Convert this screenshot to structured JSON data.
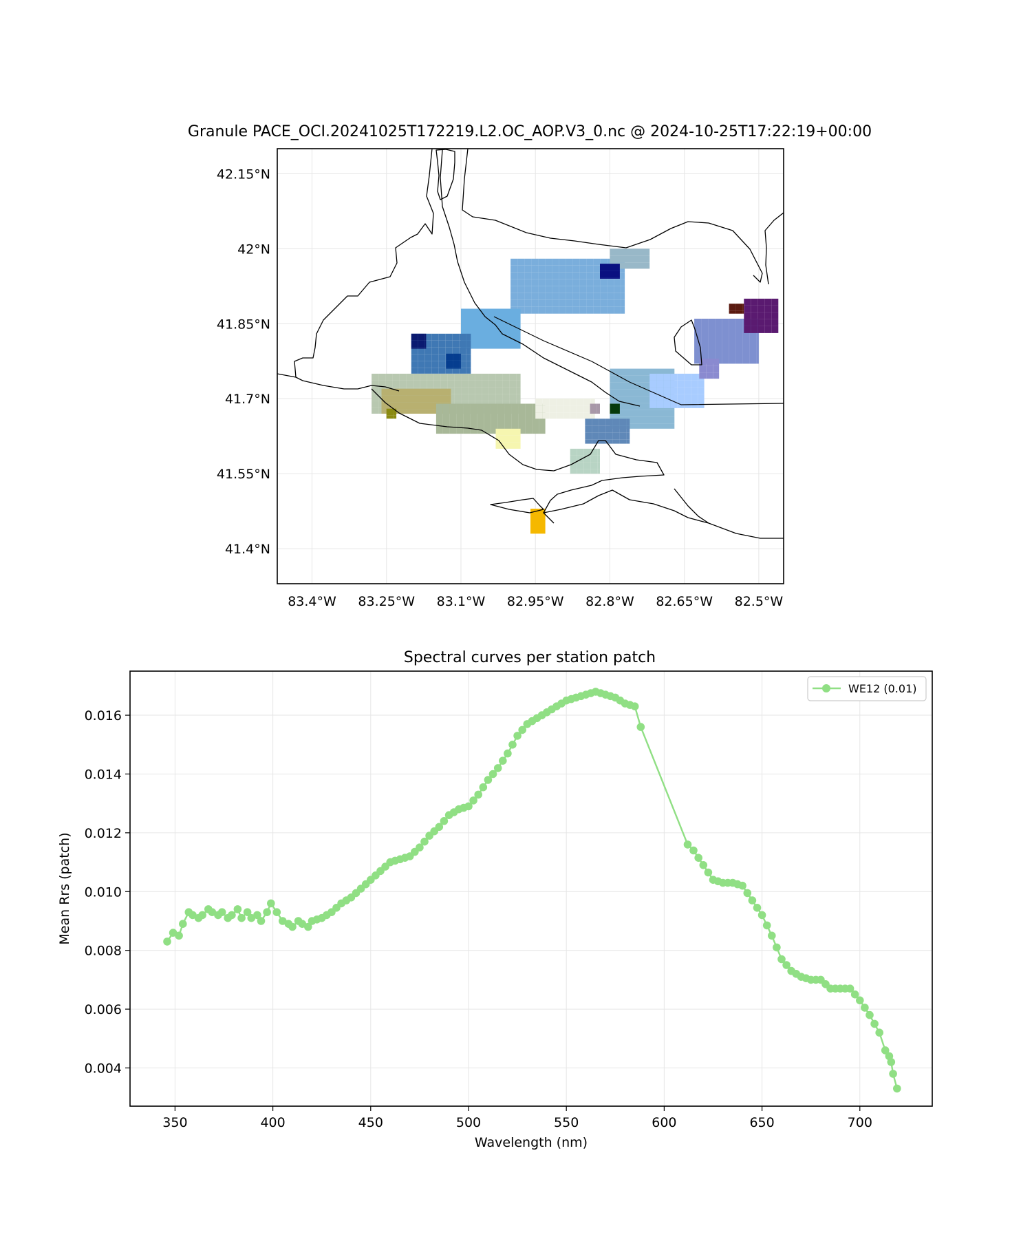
{
  "chart_data": [
    {
      "type": "heatmap",
      "title": "Granule PACE_OCI.20241025T172219.L2.OC_AOP.V3_0.nc @ 2024-10-25T17:22:19+00:00",
      "xlim": [
        -83.47,
        -82.45
      ],
      "ylim": [
        41.33,
        42.2
      ],
      "x_ticks": [
        {
          "value": -83.4,
          "label": "83.4°W"
        },
        {
          "value": -83.25,
          "label": "83.25°W"
        },
        {
          "value": -83.1,
          "label": "83.1°W"
        },
        {
          "value": -82.95,
          "label": "82.95°W"
        },
        {
          "value": -82.8,
          "label": "82.8°W"
        },
        {
          "value": -82.65,
          "label": "82.65°W"
        },
        {
          "value": -82.5,
          "label": "82.5°W"
        }
      ],
      "y_ticks": [
        {
          "value": 42.15,
          "label": "42.15°N"
        },
        {
          "value": 42.0,
          "label": "42°N"
        },
        {
          "value": 41.85,
          "label": "41.85°N"
        },
        {
          "value": 41.7,
          "label": "41.7°N"
        },
        {
          "value": 41.55,
          "label": "41.55°N"
        },
        {
          "value": 41.4,
          "label": "41.4°N"
        }
      ],
      "grid": true,
      "color_patches": [
        {
          "lon": [
            -83.0,
            -82.77
          ],
          "lat": [
            41.87,
            41.98
          ],
          "color": "#7aaedc"
        },
        {
          "lon": [
            -82.8,
            -82.72
          ],
          "lat": [
            41.96,
            42.0
          ],
          "color": "#98b8c8"
        },
        {
          "lon": [
            -82.82,
            -82.78
          ],
          "lat": [
            41.94,
            41.97
          ],
          "color": "#0a1080"
        },
        {
          "lon": [
            -83.1,
            -82.98
          ],
          "lat": [
            41.8,
            41.88
          ],
          "color": "#6aaee0"
        },
        {
          "lon": [
            -83.2,
            -83.08
          ],
          "lat": [
            41.75,
            41.83
          ],
          "color": "#3f78b4"
        },
        {
          "lon": [
            -83.2,
            -83.17
          ],
          "lat": [
            41.8,
            41.83
          ],
          "color": "#0a1a70"
        },
        {
          "lon": [
            -83.13,
            -83.1
          ],
          "lat": [
            41.76,
            41.79
          ],
          "color": "#053d8f"
        },
        {
          "lon": [
            -83.28,
            -82.98
          ],
          "lat": [
            41.67,
            41.75
          ],
          "color": "#b8c8b0"
        },
        {
          "lon": [
            -83.26,
            -83.12
          ],
          "lat": [
            41.67,
            41.72
          ],
          "color": "#b8b070"
        },
        {
          "lon": [
            -83.25,
            -83.23
          ],
          "lat": [
            41.66,
            41.68
          ],
          "color": "#8a8a10"
        },
        {
          "lon": [
            -83.15,
            -82.93
          ],
          "lat": [
            41.63,
            41.69
          ],
          "color": "#a8b898"
        },
        {
          "lon": [
            -83.03,
            -82.98
          ],
          "lat": [
            41.6,
            41.64
          ],
          "color": "#f6f6b0"
        },
        {
          "lon": [
            -82.95,
            -82.83
          ],
          "lat": [
            41.66,
            41.7
          ],
          "color": "#eef0e4"
        },
        {
          "lon": [
            -82.84,
            -82.82
          ],
          "lat": [
            41.67,
            41.69
          ],
          "color": "#a898a8"
        },
        {
          "lon": [
            -82.8,
            -82.67
          ],
          "lat": [
            41.64,
            41.76
          ],
          "color": "#8ab8d4"
        },
        {
          "lon": [
            -82.85,
            -82.76
          ],
          "lat": [
            41.61,
            41.66
          ],
          "color": "#5f88b8"
        },
        {
          "lon": [
            -82.8,
            -82.78
          ],
          "lat": [
            41.67,
            41.69
          ],
          "color": "#063a0a"
        },
        {
          "lon": [
            -82.88,
            -82.82
          ],
          "lat": [
            41.55,
            41.6
          ],
          "color": "#b8d4c4"
        },
        {
          "lon": [
            -82.72,
            -82.61
          ],
          "lat": [
            41.68,
            41.75
          ],
          "color": "#a8ccff"
        },
        {
          "lon": [
            -82.63,
            -82.5
          ],
          "lat": [
            41.77,
            41.86
          ],
          "color": "#7e90d0"
        },
        {
          "lon": [
            -82.62,
            -82.58
          ],
          "lat": [
            41.74,
            41.78
          ],
          "color": "#8a8ad0"
        },
        {
          "lon": [
            -82.53,
            -82.46
          ],
          "lat": [
            41.83,
            41.9
          ],
          "color": "#5a1a70"
        },
        {
          "lon": [
            -82.56,
            -82.53
          ],
          "lat": [
            41.87,
            41.89
          ],
          "color": "#5a1a10"
        },
        {
          "lon": [
            -82.96,
            -82.93
          ],
          "lat": [
            41.43,
            41.48
          ],
          "color": "#f5b800"
        }
      ]
    },
    {
      "type": "line",
      "title": "Spectral curves per station patch",
      "xlabel": "Wavelength (nm)",
      "ylabel": "Mean Rrs (patch)",
      "xlim": [
        327,
        737
      ],
      "ylim": [
        0.0027,
        0.0175
      ],
      "x_ticks": [
        350,
        400,
        450,
        500,
        550,
        600,
        650,
        700
      ],
      "y_ticks": [
        "0.004",
        "0.006",
        "0.008",
        "0.010",
        "0.012",
        "0.014",
        "0.016"
      ],
      "grid": true,
      "legend": "upper right",
      "series": [
        {
          "name": "WE12 (0.01)",
          "color": "#90df84",
          "anchors_x": [
            346,
            349,
            352,
            354,
            357,
            359,
            362,
            364,
            367,
            369,
            372,
            374,
            377,
            379,
            382,
            384,
            387,
            389,
            392,
            394,
            397,
            399,
            402,
            405,
            408,
            410,
            413,
            415,
            418,
            420,
            425,
            430,
            435,
            440,
            445,
            450,
            455,
            460,
            465,
            470,
            475,
            480,
            485,
            490,
            495,
            500,
            505,
            510,
            515,
            520,
            525,
            530,
            535,
            540,
            545,
            550,
            555,
            560,
            565,
            570,
            575,
            580,
            585,
            588,
            612,
            615,
            620,
            625,
            630,
            635,
            640,
            645,
            650,
            655,
            660,
            665,
            670,
            675,
            680,
            685,
            690,
            695,
            700,
            705,
            710,
            713,
            715,
            716,
            717,
            719
          ],
          "anchors_y": [
            0.0083,
            0.0086,
            0.0085,
            0.0089,
            0.0093,
            0.0092,
            0.0091,
            0.0092,
            0.0094,
            0.0093,
            0.0092,
            0.0093,
            0.0091,
            0.0092,
            0.0094,
            0.0091,
            0.0093,
            0.0091,
            0.0092,
            0.009,
            0.0093,
            0.0096,
            0.0093,
            0.009,
            0.0089,
            0.0088,
            0.009,
            0.0089,
            0.0088,
            0.009,
            0.0091,
            0.0093,
            0.0096,
            0.0098,
            0.0101,
            0.0104,
            0.0107,
            0.011,
            0.0111,
            0.0112,
            0.0115,
            0.0119,
            0.0122,
            0.0126,
            0.0128,
            0.0129,
            0.0133,
            0.0138,
            0.0142,
            0.0147,
            0.0153,
            0.0157,
            0.0159,
            0.0161,
            0.0163,
            0.0165,
            0.0166,
            0.0167,
            0.0168,
            0.0167,
            0.0166,
            0.0164,
            0.0163,
            0.0156,
            0.0116,
            0.0114,
            0.0109,
            0.0104,
            0.0103,
            0.0103,
            0.0102,
            0.0097,
            0.0092,
            0.0085,
            0.0077,
            0.0073,
            0.0071,
            0.007,
            0.007,
            0.0067,
            0.0067,
            0.0067,
            0.0063,
            0.0058,
            0.0052,
            0.0046,
            0.0044,
            0.0042,
            0.0038,
            0.0033
          ],
          "point_spacing_nm": 2.5
        }
      ]
    }
  ]
}
